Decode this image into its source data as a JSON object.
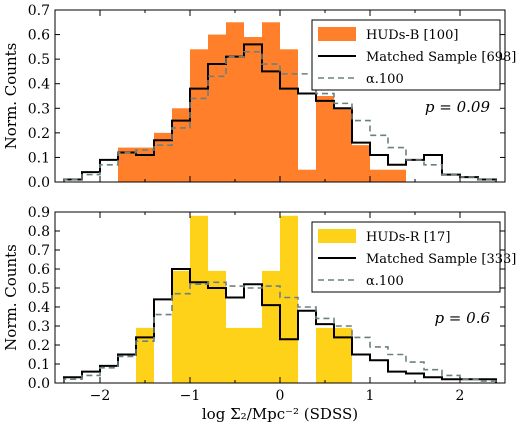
{
  "chart_data": [
    {
      "type": "histogram",
      "ylabel": "Norm. Counts",
      "ylim": [
        0,
        0.7
      ],
      "xlim": [
        -2.5,
        2.5
      ],
      "yticks": [
        "0.0",
        "0.1",
        "0.2",
        "0.3",
        "0.4",
        "0.5",
        "0.6",
        "0.7"
      ],
      "annotation": "p = 0.09",
      "legend_placement": "top-right",
      "series": [
        {
          "name": "HUDs-B [100]",
          "kind": "filled-bars",
          "color": "#ff7f2a",
          "bins": [
            [
              -2.0,
              -1.8,
              0
            ],
            [
              -1.8,
              -1.6,
              0.14
            ],
            [
              -1.6,
              -1.4,
              0.14
            ],
            [
              -1.4,
              -1.2,
              0.2
            ],
            [
              -1.2,
              -1.0,
              0.3
            ],
            [
              -1.0,
              -0.8,
              0.54
            ],
            [
              -0.8,
              -0.6,
              0.6
            ],
            [
              -0.6,
              -0.4,
              0.65
            ],
            [
              -0.4,
              -0.2,
              0.59
            ],
            [
              -0.2,
              0.0,
              0.65
            ],
            [
              0.0,
              0.2,
              0.54
            ],
            [
              0.2,
              0.4,
              0.05
            ],
            [
              0.4,
              0.6,
              0.35
            ],
            [
              0.6,
              0.8,
              0.3
            ],
            [
              0.8,
              1.0,
              0.15
            ],
            [
              1.0,
              1.2,
              0.05
            ],
            [
              1.2,
              1.4,
              0.05
            ]
          ]
        },
        {
          "name": "Matched Sample [698]",
          "kind": "step",
          "color": "#000000",
          "edges": [
            -2.4,
            -2.2,
            -2.0,
            -1.8,
            -1.6,
            -1.4,
            -1.2,
            -1.0,
            -0.8,
            -0.6,
            -0.4,
            -0.2,
            0.0,
            0.2,
            0.4,
            0.6,
            0.8,
            1.0,
            1.2,
            1.4,
            1.6,
            1.8,
            2.0,
            2.2,
            2.4
          ],
          "values": [
            0.01,
            0.04,
            0.09,
            0.12,
            0.11,
            0.17,
            0.25,
            0.38,
            0.48,
            0.51,
            0.56,
            0.45,
            0.38,
            0.36,
            0.33,
            0.3,
            0.16,
            0.11,
            0.07,
            0.09,
            0.11,
            0.03,
            0.02,
            0.01
          ]
        },
        {
          "name": "α.100",
          "kind": "dashed-step",
          "color": "#6b8080",
          "edges": [
            -2.4,
            -2.2,
            -2.0,
            -1.8,
            -1.6,
            -1.4,
            -1.2,
            -1.0,
            -0.8,
            -0.6,
            -0.4,
            -0.2,
            0.0,
            0.2,
            0.4,
            0.6,
            0.8,
            1.0,
            1.2,
            1.4,
            1.6,
            1.8,
            2.0,
            2.2,
            2.4
          ],
          "values": [
            0.01,
            0.03,
            0.07,
            0.12,
            0.13,
            0.15,
            0.22,
            0.34,
            0.43,
            0.51,
            0.53,
            0.48,
            0.44,
            0.44,
            0.36,
            0.32,
            0.25,
            0.19,
            0.14,
            0.09,
            0.07,
            0.03,
            0.02,
            0.01
          ]
        }
      ]
    },
    {
      "type": "histogram",
      "ylabel": "Norm. Counts",
      "xlabel": "log Σ₂/Mpc⁻² (SDSS)",
      "ylim": [
        0,
        0.9
      ],
      "xlim": [
        -2.5,
        2.5
      ],
      "xticks": [
        "−2",
        "−1",
        "0",
        "1",
        "2"
      ],
      "yticks": [
        "0.0",
        "0.1",
        "0.2",
        "0.3",
        "0.4",
        "0.5",
        "0.6",
        "0.7",
        "0.8",
        "0.9"
      ],
      "annotation": "p = 0.6",
      "legend_placement": "top-right",
      "series": [
        {
          "name": "HUDs-R [17]",
          "kind": "filled-bars",
          "color": "#ffd21a",
          "bins": [
            [
              -1.6,
              -1.4,
              0.29
            ],
            [
              -1.2,
              -1.0,
              0.59
            ],
            [
              -1.0,
              -0.8,
              0.88
            ],
            [
              -0.8,
              -0.6,
              0.59
            ],
            [
              -0.6,
              -0.4,
              0.29
            ],
            [
              -0.4,
              -0.2,
              0.29
            ],
            [
              -0.2,
              0.0,
              0.59
            ],
            [
              0.0,
              0.2,
              0.88
            ],
            [
              0.4,
              0.6,
              0.29
            ],
            [
              0.6,
              0.8,
              0.29
            ]
          ]
        },
        {
          "name": "Matched Sample [333]",
          "kind": "step",
          "color": "#000000",
          "edges": [
            -2.4,
            -2.2,
            -2.0,
            -1.8,
            -1.6,
            -1.4,
            -1.2,
            -1.0,
            -0.8,
            -0.6,
            -0.4,
            -0.2,
            0.0,
            0.2,
            0.4,
            0.6,
            0.8,
            1.0,
            1.2,
            1.4,
            1.6,
            1.8,
            2.0,
            2.2,
            2.4
          ],
          "values": [
            0.03,
            0.06,
            0.09,
            0.15,
            0.24,
            0.44,
            0.6,
            0.53,
            0.5,
            0.45,
            0.52,
            0.41,
            0.23,
            0.38,
            0.31,
            0.24,
            0.15,
            0.12,
            0.06,
            0.05,
            0.03,
            0.02,
            0.02,
            0.02
          ]
        },
        {
          "name": "α.100",
          "kind": "dashed-step",
          "color": "#6b8080",
          "edges": [
            -2.4,
            -2.2,
            -2.0,
            -1.8,
            -1.6,
            -1.4,
            -1.2,
            -1.0,
            -0.8,
            -0.6,
            -0.4,
            -0.2,
            0.0,
            0.2,
            0.4,
            0.6,
            0.8,
            1.0,
            1.2,
            1.4,
            1.6,
            1.8,
            2.0,
            2.2,
            2.4
          ],
          "values": [
            0.02,
            0.04,
            0.08,
            0.14,
            0.22,
            0.36,
            0.47,
            0.52,
            0.53,
            0.51,
            0.5,
            0.51,
            0.45,
            0.4,
            0.34,
            0.3,
            0.24,
            0.19,
            0.15,
            0.11,
            0.07,
            0.04,
            0.02,
            0.01
          ]
        }
      ]
    }
  ]
}
